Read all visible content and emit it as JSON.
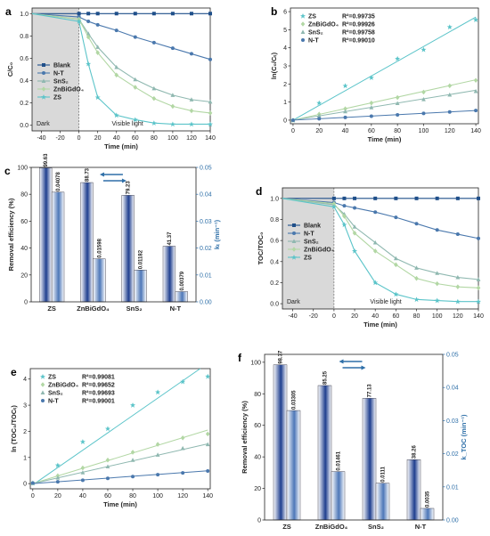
{
  "colors": {
    "Blank": "#1f4f8a",
    "N-T": "#4a78ad",
    "SnS2": "#8fb8b0",
    "ZnBiGdO4": "#b2d7a4",
    "ZS": "#5bc4c9",
    "bar_removal": "#1f3f8f",
    "bar_k": "#4d77b8"
  },
  "chart_data": [
    {
      "panel": "a",
      "type": "line",
      "xlabel": "Time (min)",
      "ylabel": "C/C₀",
      "xlim": [
        -50,
        140
      ],
      "ylim": [
        -0.05,
        1.05
      ],
      "xticks": [
        -40,
        -20,
        0,
        20,
        40,
        60,
        80,
        100,
        120,
        140
      ],
      "yticks": [
        0.0,
        0.2,
        0.4,
        0.6,
        0.8,
        1.0
      ],
      "shade_label": "Dark",
      "light_label": "Visible light",
      "legend": [
        "Blank",
        "N-T",
        "SnS₂",
        "ZnBiGdO₄",
        "ZS"
      ],
      "x": [
        -50,
        0,
        10,
        20,
        40,
        60,
        80,
        100,
        120,
        140
      ],
      "series": [
        {
          "name": "Blank",
          "key": "Blank",
          "values": [
            1.0,
            1.0,
            1.0,
            1.0,
            1.0,
            1.0,
            1.0,
            1.0,
            1.0,
            1.0
          ]
        },
        {
          "name": "N-T",
          "key": "N-T",
          "values": [
            1.0,
            0.97,
            0.93,
            0.9,
            0.85,
            0.79,
            0.74,
            0.69,
            0.64,
            0.59
          ]
        },
        {
          "name": "SnS₂",
          "key": "SnS2",
          "values": [
            1.0,
            0.95,
            0.82,
            0.7,
            0.52,
            0.41,
            0.33,
            0.27,
            0.23,
            0.21
          ]
        },
        {
          "name": "ZnBiGdO₄",
          "key": "ZnBiGdO4",
          "values": [
            1.0,
            0.95,
            0.79,
            0.65,
            0.45,
            0.34,
            0.24,
            0.17,
            0.13,
            0.11
          ]
        },
        {
          "name": "ZS",
          "key": "ZS",
          "values": [
            1.0,
            0.93,
            0.55,
            0.25,
            0.09,
            0.05,
            0.02,
            0.01,
            0.01,
            0.01
          ]
        }
      ]
    },
    {
      "panel": "b",
      "type": "scatter",
      "xlabel": "Time (min)",
      "ylabel": "ln(C₀/Cₜ)",
      "xlim": [
        -2,
        142
      ],
      "ylim": [
        -0.2,
        6.2
      ],
      "xticks": [
        0,
        20,
        40,
        60,
        80,
        100,
        120,
        140
      ],
      "yticks": [
        0,
        1,
        2,
        3,
        4,
        5,
        6
      ],
      "legend": [
        {
          "name": "ZS",
          "r2": "R²=0.99735"
        },
        {
          "name": "ZnBiGdO₄",
          "r2": "R²=0.99926"
        },
        {
          "name": "SnS₂",
          "r2": "R²=0.99758"
        },
        {
          "name": "N-T",
          "r2": "R²=0.99010"
        }
      ],
      "x": [
        0,
        20,
        40,
        60,
        80,
        100,
        120,
        140
      ],
      "series": [
        {
          "name": "ZS",
          "key": "ZS",
          "values": [
            0,
            0.95,
            1.9,
            2.35,
            3.4,
            3.9,
            5.15,
            5.55
          ],
          "fit": [
            0,
            5.7
          ]
        },
        {
          "name": "ZnBiGdO₄",
          "key": "ZnBiGdO4",
          "values": [
            0,
            0.33,
            0.63,
            0.95,
            1.25,
            1.55,
            1.9,
            2.2
          ],
          "fit": [
            0,
            2.23
          ]
        },
        {
          "name": "SnS₂",
          "key": "SnS2",
          "values": [
            0,
            0.24,
            0.48,
            0.7,
            0.93,
            1.15,
            1.4,
            1.6
          ],
          "fit": [
            0,
            1.65
          ]
        },
        {
          "name": "N-T",
          "key": "N-T",
          "values": [
            0,
            0.08,
            0.15,
            0.22,
            0.29,
            0.37,
            0.45,
            0.53
          ],
          "fit": [
            0,
            0.53
          ]
        }
      ]
    },
    {
      "panel": "c",
      "type": "bar",
      "ylabel": "Removal efficiency (%)",
      "ylabel_right": "kₜ (min⁻¹)",
      "categories": [
        "ZS",
        "ZnBiGdO₄",
        "SnS₂",
        "N-T"
      ],
      "ylim": [
        0,
        100
      ],
      "ylim_right": [
        0,
        0.05
      ],
      "yticks": [
        0,
        20,
        40,
        60,
        80,
        100
      ],
      "yticks_right": [
        "0.00",
        "0.01",
        "0.02",
        "0.03",
        "0.04",
        "0.05"
      ],
      "removal": [
        99.63,
        88.73,
        79.23,
        41.37
      ],
      "removal_labels": [
        "99.63",
        "88.73",
        "79.23",
        "41.37"
      ],
      "k": [
        0.04078,
        0.01598,
        0.01182,
        0.00379
      ],
      "k_labels": [
        "0.04078",
        "0.01598",
        "0.01182",
        "0.00379"
      ]
    },
    {
      "panel": "d",
      "type": "line",
      "xlabel": "Time (min)",
      "ylabel": "TOC/TOC₀",
      "xlim": [
        -50,
        140
      ],
      "ylim": [
        -0.05,
        1.1
      ],
      "xticks": [
        -40,
        -20,
        0,
        20,
        40,
        60,
        80,
        100,
        120,
        140
      ],
      "yticks": [
        0.0,
        0.2,
        0.4,
        0.6,
        0.8,
        1.0
      ],
      "shade_label": "Dark",
      "light_label": "Visible light",
      "legend": [
        "Blank",
        "N-T",
        "SnS₂",
        "ZnBiGdO₄",
        "ZS"
      ],
      "x": [
        -50,
        0,
        10,
        20,
        40,
        60,
        80,
        100,
        120,
        140
      ],
      "series": [
        {
          "name": "Blank",
          "key": "Blank",
          "values": [
            1.0,
            1.0,
            1.0,
            1.0,
            1.0,
            1.0,
            1.0,
            1.0,
            1.0,
            1.0
          ]
        },
        {
          "name": "N-T",
          "key": "N-T",
          "values": [
            1.0,
            0.96,
            0.93,
            0.91,
            0.87,
            0.82,
            0.76,
            0.7,
            0.66,
            0.62
          ]
        },
        {
          "name": "SnS₂",
          "key": "SnS2",
          "values": [
            1.0,
            0.94,
            0.85,
            0.73,
            0.58,
            0.43,
            0.34,
            0.29,
            0.25,
            0.23
          ]
        },
        {
          "name": "ZnBiGdO₄",
          "key": "ZnBiGdO4",
          "values": [
            1.0,
            0.95,
            0.83,
            0.67,
            0.5,
            0.37,
            0.24,
            0.19,
            0.16,
            0.15
          ]
        },
        {
          "name": "ZS",
          "key": "ZS",
          "values": [
            1.0,
            0.92,
            0.75,
            0.5,
            0.2,
            0.09,
            0.04,
            0.03,
            0.02,
            0.02
          ]
        }
      ]
    },
    {
      "panel": "e",
      "type": "scatter",
      "xlabel": "Time (min)",
      "ylabel": "ln (TOC₀/TOCₜ)",
      "xlim": [
        -2,
        142
      ],
      "ylim": [
        -0.2,
        4.4
      ],
      "xticks": [
        0,
        20,
        40,
        60,
        80,
        100,
        120,
        140
      ],
      "yticks": [
        0,
        1,
        2,
        3,
        4
      ],
      "legend": [
        {
          "name": "ZS",
          "r2": "R²=0.99081"
        },
        {
          "name": "ZnBiGdO₄",
          "r2": "R²=0.99652"
        },
        {
          "name": "SnS₂",
          "r2": "R²=0.99693"
        },
        {
          "name": "N-T",
          "r2": "R²=0.99001"
        }
      ],
      "x": [
        0,
        20,
        40,
        60,
        80,
        100,
        120,
        140
      ],
      "series": [
        {
          "name": "ZS",
          "key": "ZS",
          "values": [
            0.02,
            0.7,
            1.6,
            2.1,
            3.0,
            3.5,
            3.9,
            4.1
          ],
          "fit": [
            -0.05,
            4.6
          ]
        },
        {
          "name": "ZnBiGdO₄",
          "key": "ZnBiGdO4",
          "values": [
            0.02,
            0.3,
            0.6,
            0.9,
            1.2,
            1.5,
            1.75,
            1.9
          ],
          "fit": [
            0,
            2.05
          ]
        },
        {
          "name": "SnS₂",
          "key": "SnS2",
          "values": [
            0.02,
            0.22,
            0.42,
            0.65,
            0.9,
            1.1,
            1.35,
            1.5
          ],
          "fit": [
            0,
            1.52
          ]
        },
        {
          "name": "N-T",
          "key": "N-T",
          "values": [
            0.02,
            0.07,
            0.13,
            0.2,
            0.27,
            0.34,
            0.41,
            0.48
          ],
          "fit": [
            0,
            0.49
          ]
        }
      ]
    },
    {
      "panel": "f",
      "type": "bar",
      "ylabel": "Removal efficiency (%)",
      "ylabel_right": "k_TOC (min⁻¹)",
      "categories": [
        "ZS",
        "ZnBiGdO₄",
        "SnS₂",
        "N-T"
      ],
      "ylim": [
        0,
        105
      ],
      "ylim_right": [
        0,
        0.05
      ],
      "yticks": [
        0,
        20,
        40,
        60,
        80,
        100
      ],
      "yticks_right": [
        "0.00",
        "0.01",
        "0.02",
        "0.03",
        "0.04",
        "0.05"
      ],
      "removal": [
        98.37,
        85.25,
        77.13,
        38.26
      ],
      "removal_labels": [
        "98.37",
        "85.25",
        "77.13",
        "38.26"
      ],
      "k": [
        0.03305,
        0.01461,
        0.0111,
        0.0035
      ],
      "k_labels": [
        "0.03305",
        "0.01461",
        "0.0111",
        "0.0035"
      ]
    }
  ]
}
